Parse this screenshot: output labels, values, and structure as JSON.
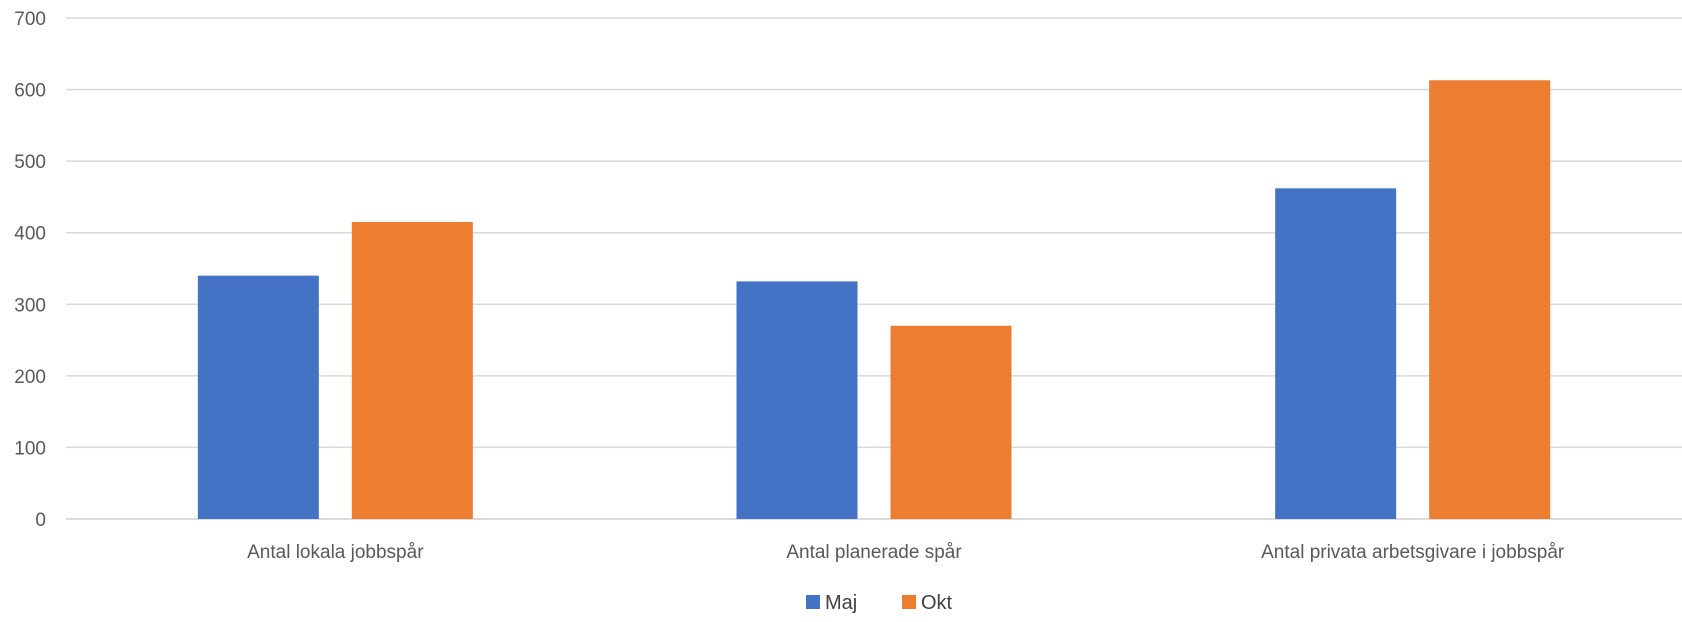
{
  "chart_data": {
    "type": "bar",
    "title": "",
    "xlabel": "",
    "ylabel": "",
    "categories": [
      "Antal lokala jobbspår",
      "Antal planerade spår",
      "Antal privata arbetsgivare i jobbspår"
    ],
    "series": [
      {
        "name": "Maj",
        "color": "#4472C4",
        "values": [
          340,
          332,
          462
        ]
      },
      {
        "name": "Okt",
        "color": "#ED7D31",
        "values": [
          415,
          270,
          613
        ]
      }
    ],
    "ylim": [
      0,
      700
    ],
    "yticks": [
      0,
      100,
      200,
      300,
      400,
      500,
      600,
      700
    ],
    "grid": true,
    "legend_position": "bottom"
  }
}
